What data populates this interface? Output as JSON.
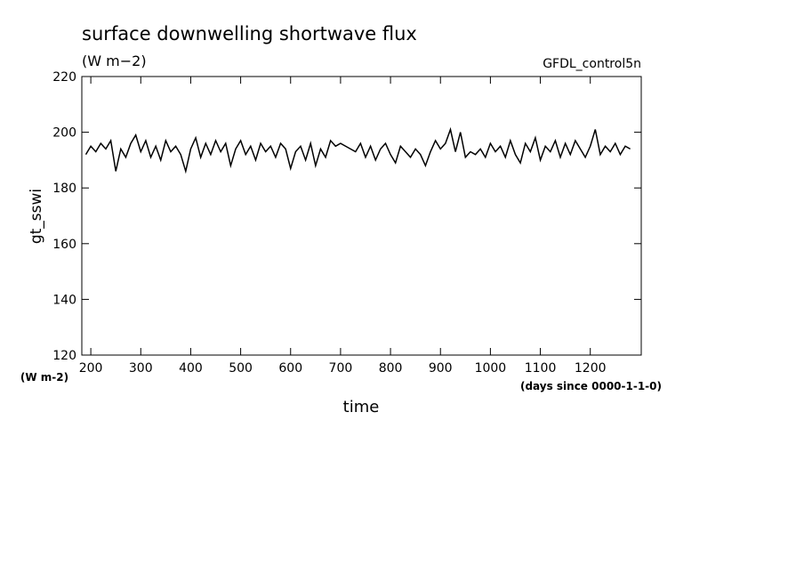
{
  "chart_data": {
    "type": "line",
    "title": "surface downwelling shortwave flux",
    "subtitle": "(W m−2)",
    "annotation": "GFDL_control5n",
    "y_label": "gt_sswi",
    "y_units": "(W m-2)",
    "x_label": "time",
    "x_units": "(days since 0000-1-1-0)",
    "xlim": [
      182,
      1302
    ],
    "ylim": [
      120,
      220
    ],
    "xticks": [
      200,
      300,
      400,
      500,
      600,
      700,
      800,
      900,
      1000,
      1100,
      1200
    ],
    "yticks": [
      120,
      140,
      160,
      180,
      200,
      220
    ],
    "x": [
      190,
      200,
      210,
      220,
      230,
      240,
      250,
      260,
      270,
      280,
      290,
      300,
      310,
      320,
      330,
      340,
      350,
      360,
      370,
      380,
      390,
      400,
      410,
      420,
      430,
      440,
      450,
      460,
      470,
      480,
      490,
      500,
      510,
      520,
      530,
      540,
      550,
      560,
      570,
      580,
      590,
      600,
      610,
      620,
      630,
      640,
      650,
      660,
      670,
      680,
      690,
      700,
      710,
      720,
      730,
      740,
      750,
      760,
      770,
      780,
      790,
      800,
      810,
      820,
      830,
      840,
      850,
      860,
      870,
      880,
      890,
      900,
      910,
      920,
      930,
      940,
      950,
      960,
      970,
      980,
      990,
      1000,
      1010,
      1020,
      1030,
      1040,
      1050,
      1060,
      1070,
      1080,
      1090,
      1100,
      1110,
      1120,
      1130,
      1140,
      1150,
      1160,
      1170,
      1180,
      1190,
      1200,
      1210,
      1220,
      1230,
      1240,
      1250,
      1260,
      1270,
      1280
    ],
    "series": [
      {
        "color": "#000000",
        "values": [
          192,
          195,
          193,
          196,
          194,
          197,
          186,
          194,
          191,
          196,
          199,
          193,
          197,
          191,
          195,
          190,
          197,
          193,
          195,
          192,
          186,
          194,
          198,
          191,
          196,
          192,
          197,
          193,
          196,
          188,
          194,
          197,
          192,
          195,
          190,
          196,
          193,
          195,
          191,
          196,
          194,
          187,
          193,
          195,
          190,
          196,
          188,
          194,
          191,
          197,
          195,
          196,
          195,
          194,
          193,
          196,
          191,
          195,
          190,
          194,
          196,
          192,
          189,
          195,
          193,
          191,
          194,
          192,
          188,
          193,
          197,
          194,
          196,
          201,
          193,
          200,
          191,
          193,
          192,
          194,
          191,
          196,
          193,
          195,
          191,
          197,
          192,
          189,
          196,
          193,
          198,
          190,
          195,
          193,
          197,
          191,
          196,
          192,
          197,
          194,
          191,
          195,
          201,
          192,
          195,
          193,
          196,
          192,
          195,
          194
        ]
      }
    ]
  }
}
